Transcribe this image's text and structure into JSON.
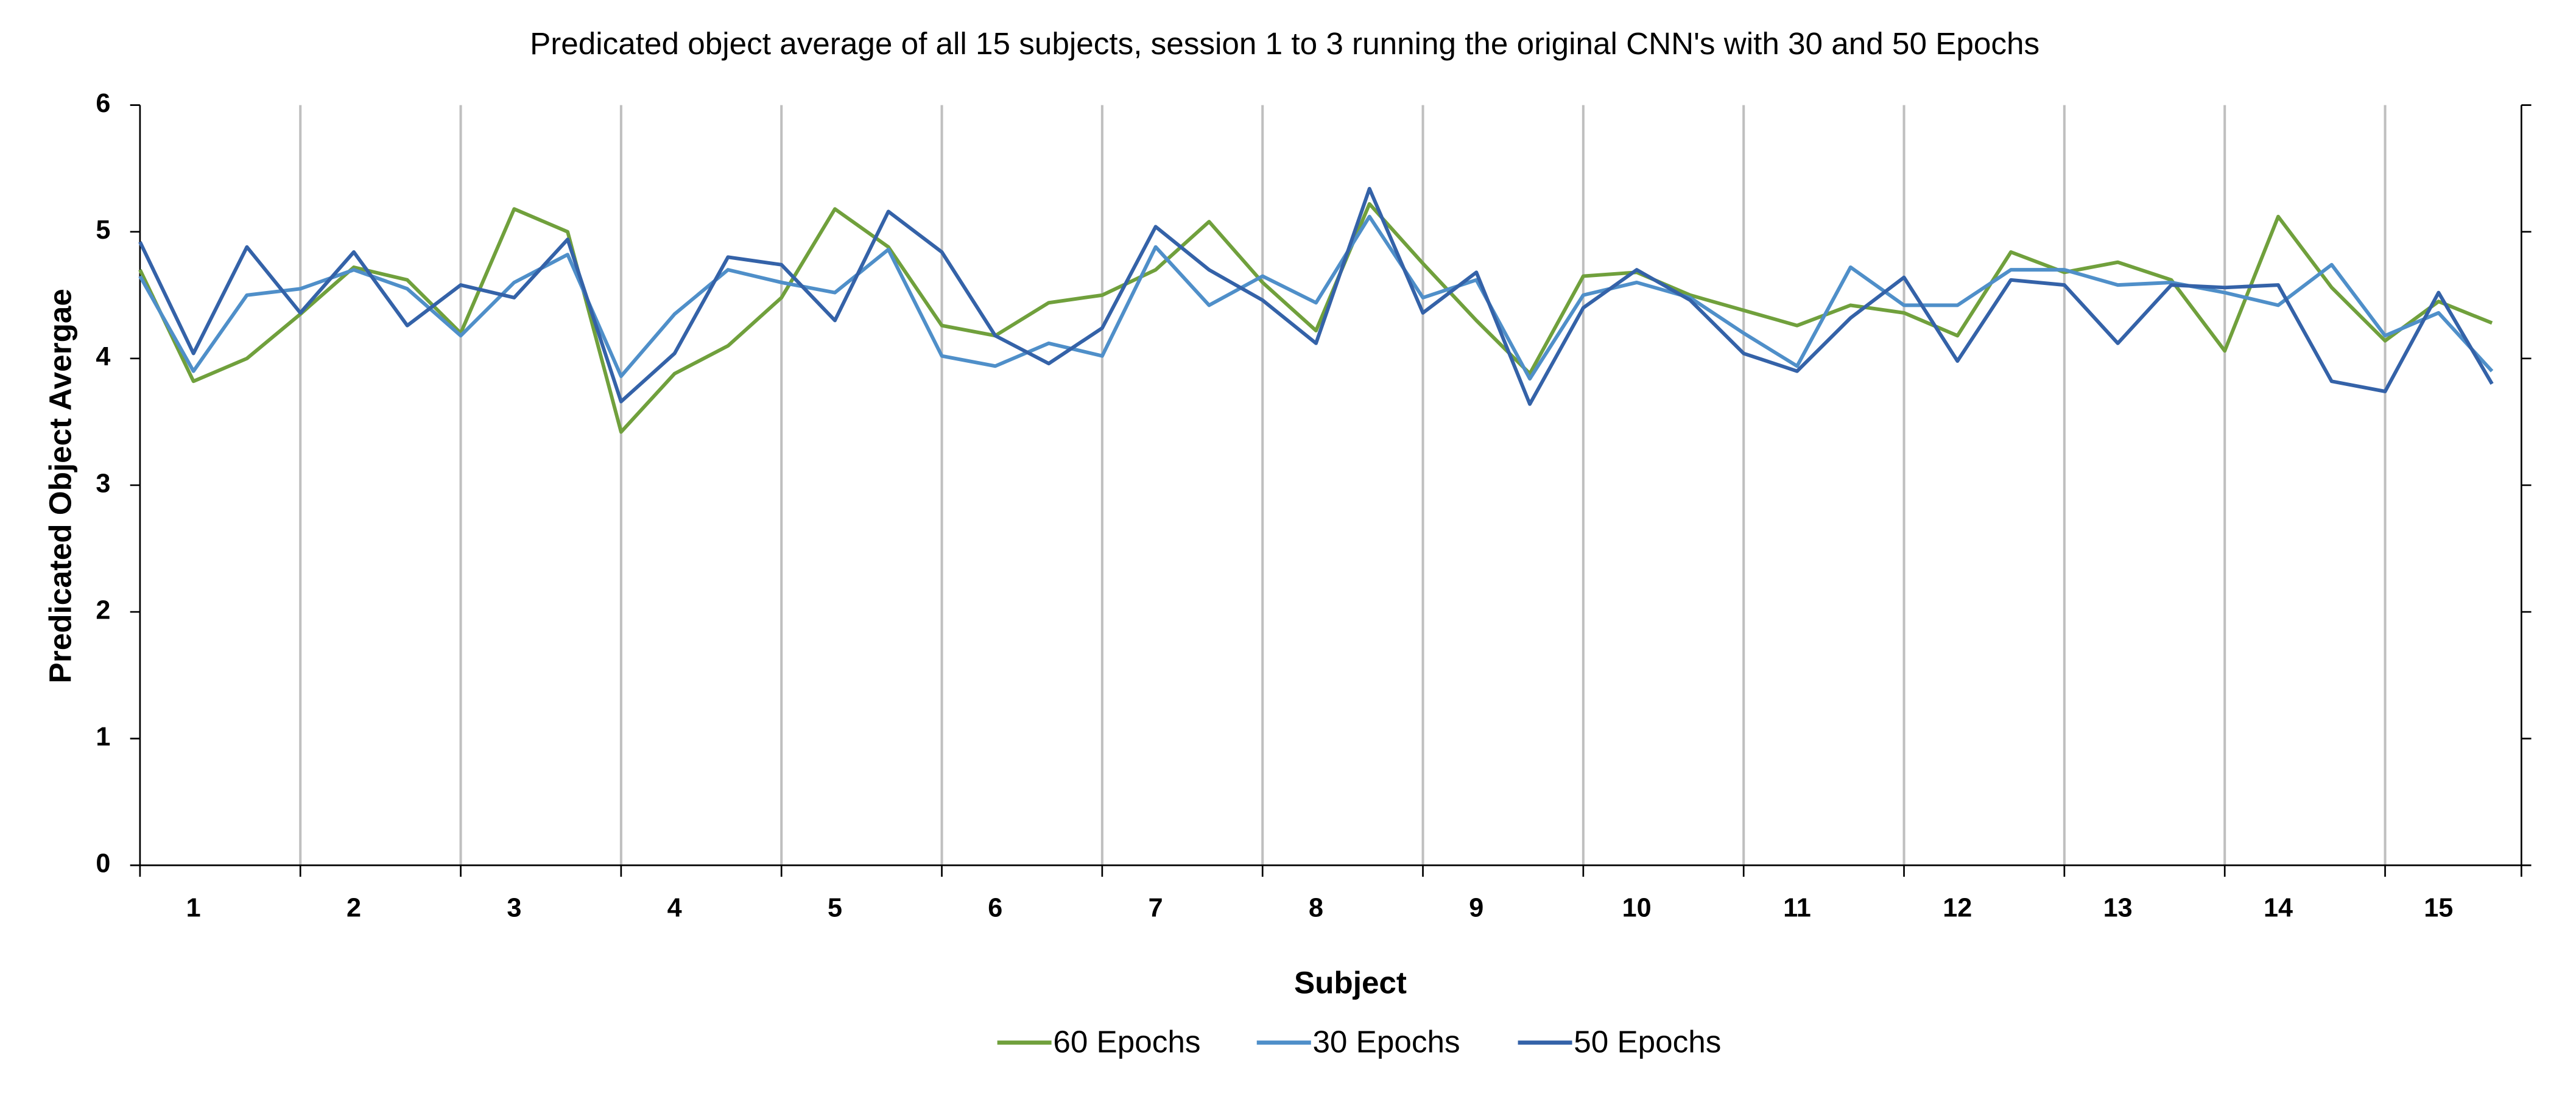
{
  "chart_data": {
    "type": "line",
    "title": "Predicated object average of all 15 subjects, session 1 to 3 running the original CNN's with 30 and 50 Epochs",
    "x_label": "Subject",
    "y_label": "Predicated Object Avergae",
    "categories": [
      null,
      "1",
      null,
      null,
      "2",
      null,
      null,
      "3",
      null,
      null,
      "4",
      null,
      null,
      "5",
      null,
      null,
      "6",
      null,
      null,
      "7",
      null,
      null,
      "8",
      null,
      null,
      "9",
      null,
      null,
      "10",
      null,
      null,
      "11",
      null,
      null,
      "12",
      null,
      null,
      "13",
      null,
      null,
      "14",
      null,
      null,
      "15",
      null
    ],
    "ylim": [
      0,
      6
    ],
    "yticks": [
      0,
      1,
      2,
      3,
      4,
      5,
      6
    ],
    "grid": false,
    "legend": "bottom",
    "series": [
      {
        "name": "60 Epochs",
        "color": "#70a03c",
        "values": [
          4.7,
          3.82,
          4.0,
          4.35,
          4.72,
          4.62,
          4.2,
          5.18,
          5.0,
          3.42,
          3.88,
          4.1,
          4.48,
          5.18,
          4.88,
          4.26,
          4.18,
          4.44,
          4.5,
          4.7,
          5.08,
          4.6,
          4.22,
          5.22,
          4.75,
          4.3,
          3.88,
          4.65,
          4.68,
          4.5,
          4.38,
          4.26,
          4.42,
          4.36,
          4.18,
          4.84,
          4.68,
          4.76,
          4.62,
          4.06,
          5.12,
          4.56,
          4.14,
          4.45,
          4.28
        ]
      },
      {
        "name": "30 Epochs",
        "color": "#4f8fc9",
        "values": [
          4.65,
          3.9,
          4.5,
          4.55,
          4.7,
          4.55,
          4.18,
          4.6,
          4.82,
          3.86,
          4.35,
          4.7,
          4.6,
          4.52,
          4.86,
          4.02,
          3.94,
          4.12,
          4.02,
          4.88,
          4.42,
          4.65,
          4.44,
          5.12,
          4.48,
          4.62,
          3.84,
          4.5,
          4.6,
          4.48,
          4.2,
          3.94,
          4.72,
          4.42,
          4.42,
          4.7,
          4.7,
          4.58,
          4.6,
          4.52,
          4.42,
          4.74,
          4.18,
          4.36,
          3.9
        ]
      },
      {
        "name": "50 Epochs",
        "color": "#3462a8",
        "values": [
          4.92,
          4.04,
          4.88,
          4.36,
          4.84,
          4.26,
          4.58,
          4.48,
          4.94,
          3.66,
          4.04,
          4.8,
          4.74,
          4.3,
          5.16,
          4.84,
          4.18,
          3.96,
          4.24,
          5.04,
          4.7,
          4.46,
          4.12,
          5.34,
          4.36,
          4.68,
          3.64,
          4.4,
          4.7,
          4.46,
          4.04,
          3.9,
          4.32,
          4.64,
          3.98,
          4.62,
          4.58,
          4.12,
          4.58,
          4.56,
          4.58,
          3.82,
          3.74,
          4.52,
          3.8
        ]
      }
    ]
  }
}
